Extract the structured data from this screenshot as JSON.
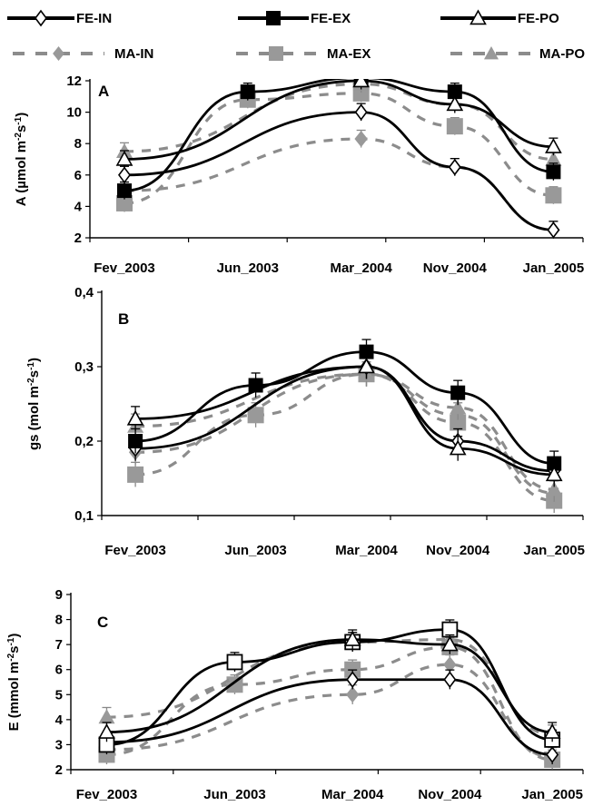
{
  "legend": [
    {
      "label": "FE-IN",
      "marker": "diamond-open",
      "line": "solid"
    },
    {
      "label": "FE-EX",
      "marker": "square-filled",
      "line": "solid"
    },
    {
      "label": "FE-PO",
      "marker": "triangle-open",
      "line": "solid"
    },
    {
      "label": "MA-IN",
      "marker": "diamond-gray",
      "line": "dashed"
    },
    {
      "label": "MA-EX",
      "marker": "square-gray",
      "line": "dashed"
    },
    {
      "label": "MA-PO",
      "marker": "triangle-gray",
      "line": "dashed"
    }
  ],
  "colors": {
    "FE": "#000000",
    "MA": "#8c8c8c",
    "MA_marker": "#999999"
  },
  "chart_data": [
    {
      "type": "line",
      "panel": "A",
      "ylabel": "A (µmol m-2s-1)",
      "ylabel_parts": {
        "base": "A (µmol m",
        "sup1": "-2",
        "mid": "s",
        "sup2": "-1",
        "end": ")"
      },
      "categories": [
        "Fev_2003",
        "Jun_2003",
        "Mar_2004",
        "Nov_2004",
        "Jan_2005"
      ],
      "ylim": [
        2,
        12
      ],
      "yticks": [
        "2",
        "4",
        "6",
        "8",
        "10",
        "12"
      ],
      "series": [
        {
          "name": "FE-IN",
          "values": [
            6.0,
            null,
            10.0,
            6.5,
            2.5
          ]
        },
        {
          "name": "FE-EX",
          "values": [
            5.0,
            11.3,
            12.2,
            11.3,
            6.2
          ]
        },
        {
          "name": "FE-PO",
          "values": [
            7.0,
            null,
            12.0,
            10.5,
            7.8
          ]
        },
        {
          "name": "MA-IN",
          "values": [
            5.0,
            null,
            8.3,
            6.5,
            2.5
          ]
        },
        {
          "name": "MA-EX",
          "values": [
            4.2,
            10.8,
            11.2,
            9.1,
            4.7
          ]
        },
        {
          "name": "MA-PO",
          "values": [
            7.5,
            null,
            11.8,
            10.5,
            7.0
          ]
        }
      ]
    },
    {
      "type": "line",
      "panel": "B",
      "ylabel": "gs (mol m-2s-1)",
      "ylabel_parts": {
        "base": "gs (mol m",
        "sup1": "-2",
        "mid": "s",
        "sup2": "-1",
        "end": ")"
      },
      "categories": [
        "Fev_2003",
        "Jun_2003",
        "Mar_2004",
        "Nov_2004",
        "Jan_2005"
      ],
      "ylim": [
        0.1,
        0.4
      ],
      "yticks": [
        "0,1",
        "0,2",
        "0,3",
        "0,4"
      ],
      "series": [
        {
          "name": "FE-IN",
          "values": [
            0.19,
            null,
            0.3,
            0.2,
            0.16
          ]
        },
        {
          "name": "FE-EX",
          "values": [
            0.2,
            0.275,
            0.32,
            0.265,
            0.17
          ]
        },
        {
          "name": "FE-PO",
          "values": [
            0.23,
            null,
            0.3,
            0.19,
            0.155
          ]
        },
        {
          "name": "MA-IN",
          "values": [
            0.185,
            null,
            0.29,
            0.235,
            0.13
          ]
        },
        {
          "name": "MA-EX",
          "values": [
            0.155,
            0.235,
            0.29,
            0.225,
            0.12
          ]
        },
        {
          "name": "MA-PO",
          "values": [
            0.22,
            null,
            0.29,
            0.245,
            0.135
          ]
        }
      ]
    },
    {
      "type": "line",
      "panel": "C",
      "ylabel": "E (mmol m-2s-1)",
      "ylabel_parts": {
        "base": "E (mmol m",
        "sup1": "-2",
        "mid": "s",
        "sup2": "-1",
        "end": ")"
      },
      "categories": [
        "Fev_2003",
        "Jun_2003",
        "Mar_2004",
        "Nov_2004",
        "Jan_2005"
      ],
      "ylim": [
        2,
        9
      ],
      "yticks": [
        "2",
        "3",
        "4",
        "5",
        "6",
        "7",
        "8",
        "9"
      ],
      "series": [
        {
          "name": "FE-IN",
          "values": [
            3.1,
            null,
            5.6,
            5.6,
            2.6
          ]
        },
        {
          "name": "FE-EX",
          "values": [
            3.0,
            6.3,
            7.1,
            7.6,
            3.2
          ]
        },
        {
          "name": "FE-PO",
          "values": [
            3.5,
            null,
            7.2,
            7.0,
            3.5
          ]
        },
        {
          "name": "MA-IN",
          "values": [
            2.8,
            null,
            5.0,
            6.2,
            2.5
          ]
        },
        {
          "name": "MA-EX",
          "values": [
            2.6,
            5.4,
            6.0,
            6.9,
            2.4
          ]
        },
        {
          "name": "MA-PO",
          "values": [
            4.1,
            null,
            7.1,
            7.2,
            3.4
          ]
        }
      ]
    }
  ]
}
